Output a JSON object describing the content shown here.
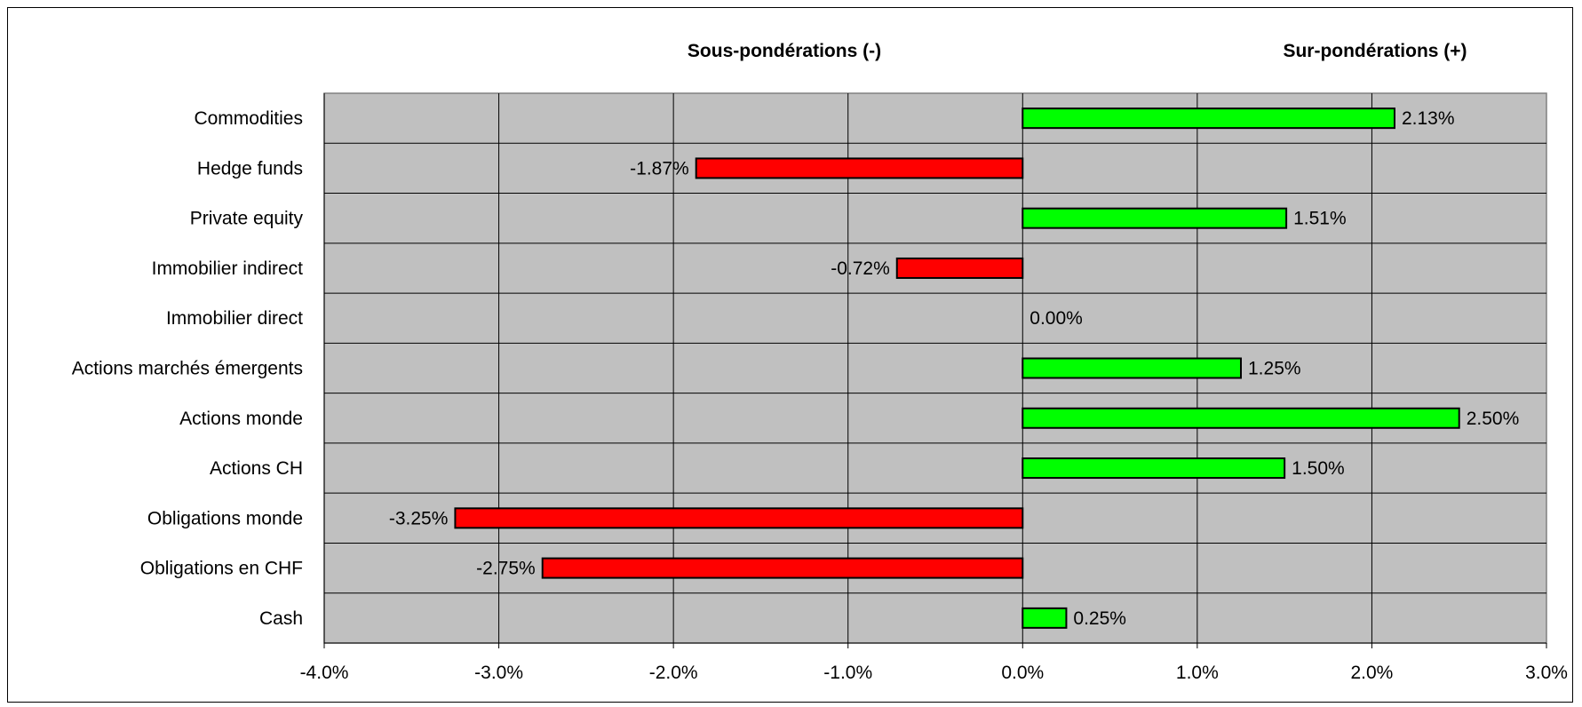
{
  "chart_data": {
    "type": "bar",
    "orientation": "horizontal",
    "header_left": "Sous-pondérations (-)",
    "header_right": "Sur-pondérations (+)",
    "categories": [
      "Commodities",
      "Hedge funds",
      "Private equity",
      "Immobilier indirect",
      "Immobilier direct",
      "Actions marchés émergents",
      "Actions monde",
      "Actions CH",
      "Obligations monde",
      "Obligations en CHF",
      "Cash"
    ],
    "values": [
      2.13,
      -1.87,
      1.51,
      -0.72,
      0.0,
      1.25,
      2.5,
      1.5,
      -3.25,
      -2.75,
      0.25
    ],
    "data_labels": [
      "2.13%",
      "-1.87%",
      "1.51%",
      "-0.72%",
      "0.00%",
      "1.25%",
      "2.50%",
      "1.50%",
      "-3.25%",
      "-2.75%",
      "0.25%"
    ],
    "xlim": [
      -4.0,
      3.0
    ],
    "xticks": [
      -4,
      -3,
      -2,
      -1,
      0,
      1,
      2,
      3
    ],
    "xtick_labels": [
      "-4.0%",
      "-3.0%",
      "-2.0%",
      "-1.0%",
      "0.0%",
      "1.0%",
      "2.0%",
      "3.0%"
    ],
    "grid": true,
    "colors": {
      "positive": "#00FF00",
      "negative": "#FF0000",
      "plot_background": "#C0C0C0",
      "grid": "#000000"
    }
  }
}
